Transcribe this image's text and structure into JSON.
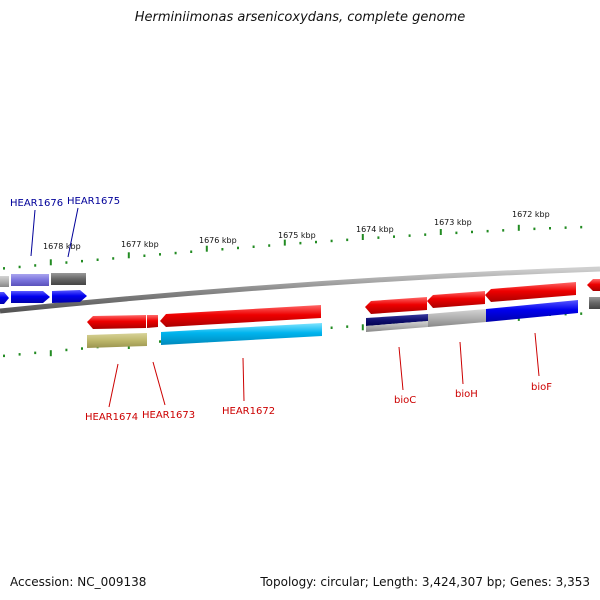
{
  "title": "Herminiimonas arsenicoxydans, complete genome",
  "footer": {
    "accession": "Accession: NC_009138",
    "topology": "Topology: circular; Length: 3,424,307 bp; Genes: 3,353"
  },
  "colors": {
    "tick": "#228b22",
    "backbone": "#888888",
    "label_red": "#cc0000",
    "label_blue": "#000099"
  },
  "ruler": {
    "kbp_labels": [
      "1678 kbp",
      "1677 kbp",
      "1676 kbp",
      "1675 kbp",
      "1674 kbp",
      "1673 kbp",
      "1672 kbp"
    ]
  },
  "genes": {
    "top_labels": [
      "HEAR1676",
      "HEAR1675"
    ],
    "bottom_labels": [
      "HEAR1674",
      "HEAR1673",
      "HEAR1672",
      "bioC",
      "bioH",
      "bioF"
    ]
  }
}
